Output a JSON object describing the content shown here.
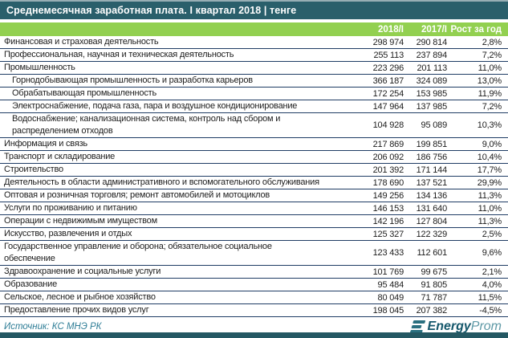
{
  "title": "Среднемесячная заработная плата. I квартал 2018 | тенге",
  "table": {
    "columns": [
      "2018/I",
      "2017/I",
      "Рост за год"
    ],
    "rows": [
      {
        "label": "Финансовая и страховая деятельность",
        "v2018": "298 974",
        "v2017": "290 814",
        "growth": "2,8%",
        "indent": false
      },
      {
        "label": "Профессиональная, научная и техническая деятельность",
        "v2018": "255 113",
        "v2017": "237 894",
        "growth": "7,2%",
        "indent": false
      },
      {
        "label": "Промышленность",
        "v2018": "223 296",
        "v2017": "201 113",
        "growth": "11,0%",
        "indent": false
      },
      {
        "label": "Горнодобывающая промышленность и разработка карьеров",
        "v2018": "366 187",
        "v2017": "324 089",
        "growth": "13,0%",
        "indent": true
      },
      {
        "label": "Обрабатывающая промышленность",
        "v2018": "172 254",
        "v2017": "153 985",
        "growth": "11,9%",
        "indent": true
      },
      {
        "label": "Электроснабжение, подача газа, пара и воздушное кондиционирование",
        "v2018": "147 964",
        "v2017": "137 985",
        "growth": "7,2%",
        "indent": true
      },
      {
        "label": "Водоснабжение; канализационная система, контроль над сбором и\nраспределением отходов",
        "v2018": "104 928",
        "v2017": "95 089",
        "growth": "10,3%",
        "indent": true
      },
      {
        "label": "Информация и связь",
        "v2018": "217 869",
        "v2017": "199 851",
        "growth": "9,0%",
        "indent": false
      },
      {
        "label": "Транспорт и складирование",
        "v2018": "206 092",
        "v2017": "186 756",
        "growth": "10,4%",
        "indent": false
      },
      {
        "label": "Строительство",
        "v2018": "201 392",
        "v2017": "171 144",
        "growth": "17,7%",
        "indent": false
      },
      {
        "label": "Деятельность в области административного и вспомогательного обслуживания",
        "v2018": "178 690",
        "v2017": "137 521",
        "growth": "29,9%",
        "indent": false
      },
      {
        "label": "Оптовая и розничная торговля; ремонт автомобилей и мотоциклов",
        "v2018": "149 256",
        "v2017": "134 136",
        "growth": "11,3%",
        "indent": false
      },
      {
        "label": "Услуги по проживанию и питанию",
        "v2018": "146 153",
        "v2017": "131 640",
        "growth": "11,0%",
        "indent": false
      },
      {
        "label": "Операции с недвижимым имуществом",
        "v2018": "142 196",
        "v2017": "127 804",
        "growth": "11,3%",
        "indent": false
      },
      {
        "label": "Искусство, развлечения и отдых",
        "v2018": "125 327",
        "v2017": "122 329",
        "growth": "2,5%",
        "indent": false
      },
      {
        "label": "Государственное управление и оборона; обязательное социальное\nобеспечение",
        "v2018": "123 433",
        "v2017": "112 601",
        "growth": "9,6%",
        "indent": false
      },
      {
        "label": "Здравоохранение и социальные услуги",
        "v2018": "101 769",
        "v2017": "99 675",
        "growth": "2,1%",
        "indent": false
      },
      {
        "label": "Образование",
        "v2018": "95 484",
        "v2017": "91 805",
        "growth": "4,0%",
        "indent": false
      },
      {
        "label": "Сельское, лесное и рыбное хозяйство",
        "v2018": "80 049",
        "v2017": "71 787",
        "growth": "11,5%",
        "indent": false
      },
      {
        "label": "Предоставление прочих видов услуг",
        "v2018": "198 045",
        "v2017": "207 382",
        "growth": "-4,5%",
        "indent": false
      }
    ]
  },
  "footer": {
    "source": "Источник: КС МНЭ РК",
    "logo_bold": "Energy",
    "logo_light": "Prom"
  },
  "colors": {
    "header_green": "#92d050",
    "titlebar_teal": "#2a5f6b",
    "bottombar_teal": "#245863",
    "separator_navy": "#1f3c64",
    "source_teal": "#2e7d96",
    "logo_teal": "#2a7080"
  },
  "chart_data": {
    "type": "table",
    "title": "Среднемесячная заработная плата. I квартал 2018 | тенге",
    "columns": [
      "2018/I",
      "2017/I",
      "Рост за год"
    ],
    "unit": "тенге",
    "rows": [
      {
        "label": "Финансовая и страховая деятельность",
        "v2018": 298974,
        "v2017": 290814,
        "growth_pct": 2.8
      },
      {
        "label": "Профессиональная, научная и техническая деятельность",
        "v2018": 255113,
        "v2017": 237894,
        "growth_pct": 7.2
      },
      {
        "label": "Промышленность",
        "v2018": 223296,
        "v2017": 201113,
        "growth_pct": 11.0
      },
      {
        "label": "Горнодобывающая промышленность и разработка карьеров",
        "v2018": 366187,
        "v2017": 324089,
        "growth_pct": 13.0
      },
      {
        "label": "Обрабатывающая промышленность",
        "v2018": 172254,
        "v2017": 153985,
        "growth_pct": 11.9
      },
      {
        "label": "Электроснабжение, подача газа, пара и воздушное кондиционирование",
        "v2018": 147964,
        "v2017": 137985,
        "growth_pct": 7.2
      },
      {
        "label": "Водоснабжение; канализационная система, контроль над сбором и распределением отходов",
        "v2018": 104928,
        "v2017": 95089,
        "growth_pct": 10.3
      },
      {
        "label": "Информация и связь",
        "v2018": 217869,
        "v2017": 199851,
        "growth_pct": 9.0
      },
      {
        "label": "Транспорт и складирование",
        "v2018": 206092,
        "v2017": 186756,
        "growth_pct": 10.4
      },
      {
        "label": "Строительство",
        "v2018": 201392,
        "v2017": 171144,
        "growth_pct": 17.7
      },
      {
        "label": "Деятельность в области административного и вспомогательного обслуживания",
        "v2018": 178690,
        "v2017": 137521,
        "growth_pct": 29.9
      },
      {
        "label": "Оптовая и розничная торговля; ремонт автомобилей и мотоциклов",
        "v2018": 149256,
        "v2017": 134136,
        "growth_pct": 11.3
      },
      {
        "label": "Услуги по проживанию и питанию",
        "v2018": 146153,
        "v2017": 131640,
        "growth_pct": 11.0
      },
      {
        "label": "Операции с недвижимым имуществом",
        "v2018": 142196,
        "v2017": 127804,
        "growth_pct": 11.3
      },
      {
        "label": "Искусство, развлечения и отдых",
        "v2018": 125327,
        "v2017": 122329,
        "growth_pct": 2.5
      },
      {
        "label": "Государственное управление и оборона; обязательное социальное обеспечение",
        "v2018": 123433,
        "v2017": 112601,
        "growth_pct": 9.6
      },
      {
        "label": "Здравоохранение и социальные услуги",
        "v2018": 101769,
        "v2017": 99675,
        "growth_pct": 2.1
      },
      {
        "label": "Образование",
        "v2018": 95484,
        "v2017": 91805,
        "growth_pct": 4.0
      },
      {
        "label": "Сельское, лесное и рыбное хозяйство",
        "v2018": 80049,
        "v2017": 71787,
        "growth_pct": 11.5
      },
      {
        "label": "Предоставление прочих видов услуг",
        "v2018": 198045,
        "v2017": 207382,
        "growth_pct": -4.5
      }
    ]
  }
}
